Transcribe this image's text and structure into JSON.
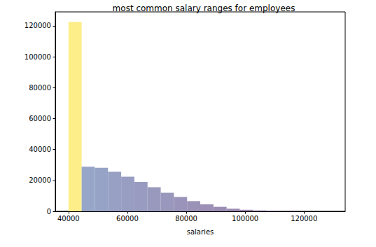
{
  "chart_data": {
    "type": "histogram",
    "title": "most common salary ranges for employees",
    "x_label": "salaries",
    "bins": [
      40000,
      44475,
      48949,
      53424,
      57898,
      62373,
      66848,
      71322,
      75797,
      80271,
      84746,
      89221,
      93695,
      98170,
      102644,
      107119,
      111594,
      116068,
      120543,
      125017,
      129492
    ],
    "values": [
      122500,
      28800,
      28200,
      25600,
      22400,
      19000,
      15600,
      12000,
      9300,
      6600,
      4500,
      2900,
      1700,
      1000,
      600,
      300,
      150,
      80,
      30,
      10
    ],
    "colors": [
      "#fdee8a",
      "#97a5c8",
      "#97a3c6",
      "#98a0c4",
      "#989ec2",
      "#999bc0",
      "#9999be",
      "#9a97bc",
      "#9b94ba",
      "#9b92b8",
      "#9c90b6",
      "#9c8db4",
      "#9d8bb2",
      "#9d88b0",
      "#9e86ae",
      "#9e84ac",
      "#9f81aa",
      "#9f7fa8",
      "#a07ca6",
      "#a07aa4"
    ],
    "xlim": [
      35525,
      133967
    ],
    "xticks": [
      40000,
      60000,
      80000,
      100000,
      120000
    ],
    "ylim": [
      0,
      129000
    ],
    "yticks": [
      0,
      20000,
      40000,
      60000,
      80000,
      100000,
      120000
    ],
    "grid": false
  }
}
